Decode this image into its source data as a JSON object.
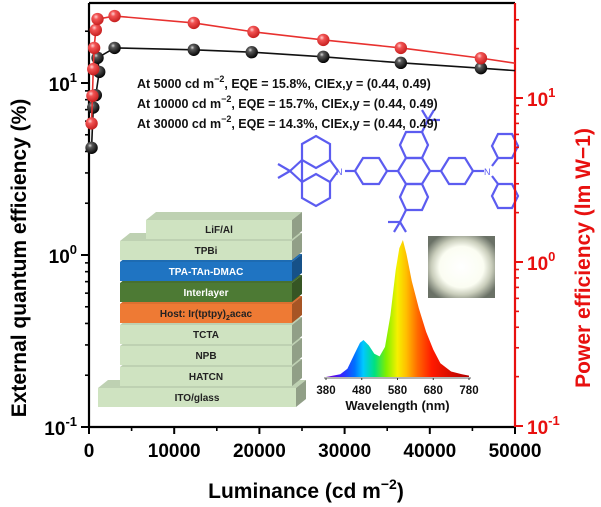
{
  "chart_data": {
    "type": "scatter",
    "subtype": "line-with-markers, dual log y-axes",
    "xlabel": "Luminance (cd m−2)",
    "ylabel_left": "External quantum efficiency (%)",
    "ylabel_right": "Power efficiency (lm W−1)",
    "xlim": [
      0,
      50000
    ],
    "ylim_left": [
      0.1,
      29
    ],
    "ylim_right": [
      0.1,
      37
    ],
    "yscale": "log",
    "x_ticks": [
      0,
      10000,
      20000,
      30000,
      40000,
      50000
    ],
    "x_tick_labels": [
      "0",
      "10000",
      "20000",
      "30000",
      "40000",
      "50000"
    ],
    "y_left_ticks": [
      {
        "value": 0.1,
        "base": "10",
        "exp": "-1"
      },
      {
        "value": 1,
        "base": "10",
        "exp": "0"
      },
      {
        "value": 10,
        "base": "10",
        "exp": "1"
      }
    ],
    "y_right_ticks": [
      {
        "value": 0.1,
        "base": "10",
        "exp": "-1"
      },
      {
        "value": 1,
        "base": "10",
        "exp": "0"
      },
      {
        "value": 10,
        "base": "10",
        "exp": "1"
      }
    ],
    "series": [
      {
        "name": "EQE",
        "axis": "left",
        "color": "#111111",
        "x": [
          300,
          500,
          800,
          1200,
          1000,
          3000,
          12300,
          19100,
          27500,
          36600,
          46000
        ],
        "y": [
          4.2,
          7.2,
          8.5,
          11.6,
          14.0,
          16.0,
          15.6,
          15.1,
          14.2,
          13.1,
          12.2
        ],
        "line_end": {
          "x": 50000,
          "y": 11.8
        }
      },
      {
        "name": "Power efficiency",
        "axis": "right",
        "color": "#e8312f",
        "x": [
          300,
          400,
          500,
          600,
          800,
          1000,
          3000,
          12300,
          19300,
          27500,
          36600,
          46000
        ],
        "y": [
          7.0,
          10.3,
          15.0,
          20.2,
          26.0,
          30.3,
          31.6,
          28.7,
          25.3,
          22.6,
          20.2,
          17.5
        ],
        "line_end": {
          "x": 50000,
          "y": 16.3
        }
      }
    ],
    "annotations": [
      {
        "lum": "At 5000   cd m",
        "exp": "−2",
        "rest": ", EQE = 15.8%, CIEx,y = (0.44, 0.49)"
      },
      {
        "lum": "At 10000 cd m",
        "exp": "−2",
        "rest": ", EQE = 15.7%, CIEx,y = (0.44, 0.49)"
      },
      {
        "lum": "At 30000 cd m",
        "exp": "−2",
        "rest": ", EQE = 14.3%, CIEx,y = (0.44, 0.49)"
      }
    ],
    "inset_device_stack": {
      "layers_top_to_bottom": [
        {
          "label": "LiF/Al",
          "color": "#cfe3c1",
          "text_color": "#222222"
        },
        {
          "label": "TPBi",
          "color": "#cfe3c1",
          "text_color": "#222222"
        },
        {
          "label": "TPA-TAn-DMAC",
          "color": "#1f74c2",
          "text_color": "#ffffff"
        },
        {
          "label": "Interlayer",
          "color": "#4d7a34",
          "text_color": "#ffffff"
        },
        {
          "label": "Host: Ir(tptpy)",
          "sub": "2",
          "label_tail": "acac",
          "color": "#ee7a34",
          "text_color": "#222222"
        },
        {
          "label": "TCTA",
          "color": "#cfe3c1",
          "text_color": "#222222"
        },
        {
          "label": "NPB",
          "color": "#cfe3c1",
          "text_color": "#222222"
        },
        {
          "label": "HATCN",
          "color": "#cfe3c1",
          "text_color": "#222222"
        },
        {
          "label": "ITO/glass",
          "color": "#cfe3c1",
          "text_color": "#222222"
        }
      ]
    },
    "inset_spectrum": {
      "type": "area",
      "xlabel": "Wavelength (nm)",
      "xlim": [
        380,
        780
      ],
      "x_ticks": [
        380,
        480,
        580,
        680,
        780
      ],
      "x_tick_labels": [
        "380",
        "480",
        "580",
        "680",
        "780"
      ],
      "x": [
        380,
        400,
        420,
        440,
        460,
        475,
        485,
        500,
        515,
        530,
        545,
        560,
        575,
        585,
        595,
        605,
        620,
        640,
        660,
        680,
        700,
        730,
        760,
        780
      ],
      "y": [
        0.0,
        0.01,
        0.02,
        0.06,
        0.17,
        0.25,
        0.27,
        0.23,
        0.17,
        0.15,
        0.22,
        0.45,
        0.78,
        0.94,
        1.0,
        0.9,
        0.7,
        0.5,
        0.33,
        0.2,
        0.1,
        0.04,
        0.02,
        0.01
      ]
    },
    "inset_molecule": {
      "name": "TPA-TAn-DMAC structure",
      "color": "#5c5cf0"
    },
    "inset_photo": {
      "description": "photo of white-emitting device pixel"
    }
  },
  "colors": {
    "left_axis": "#000000",
    "right_axis": "#e8100f"
  }
}
